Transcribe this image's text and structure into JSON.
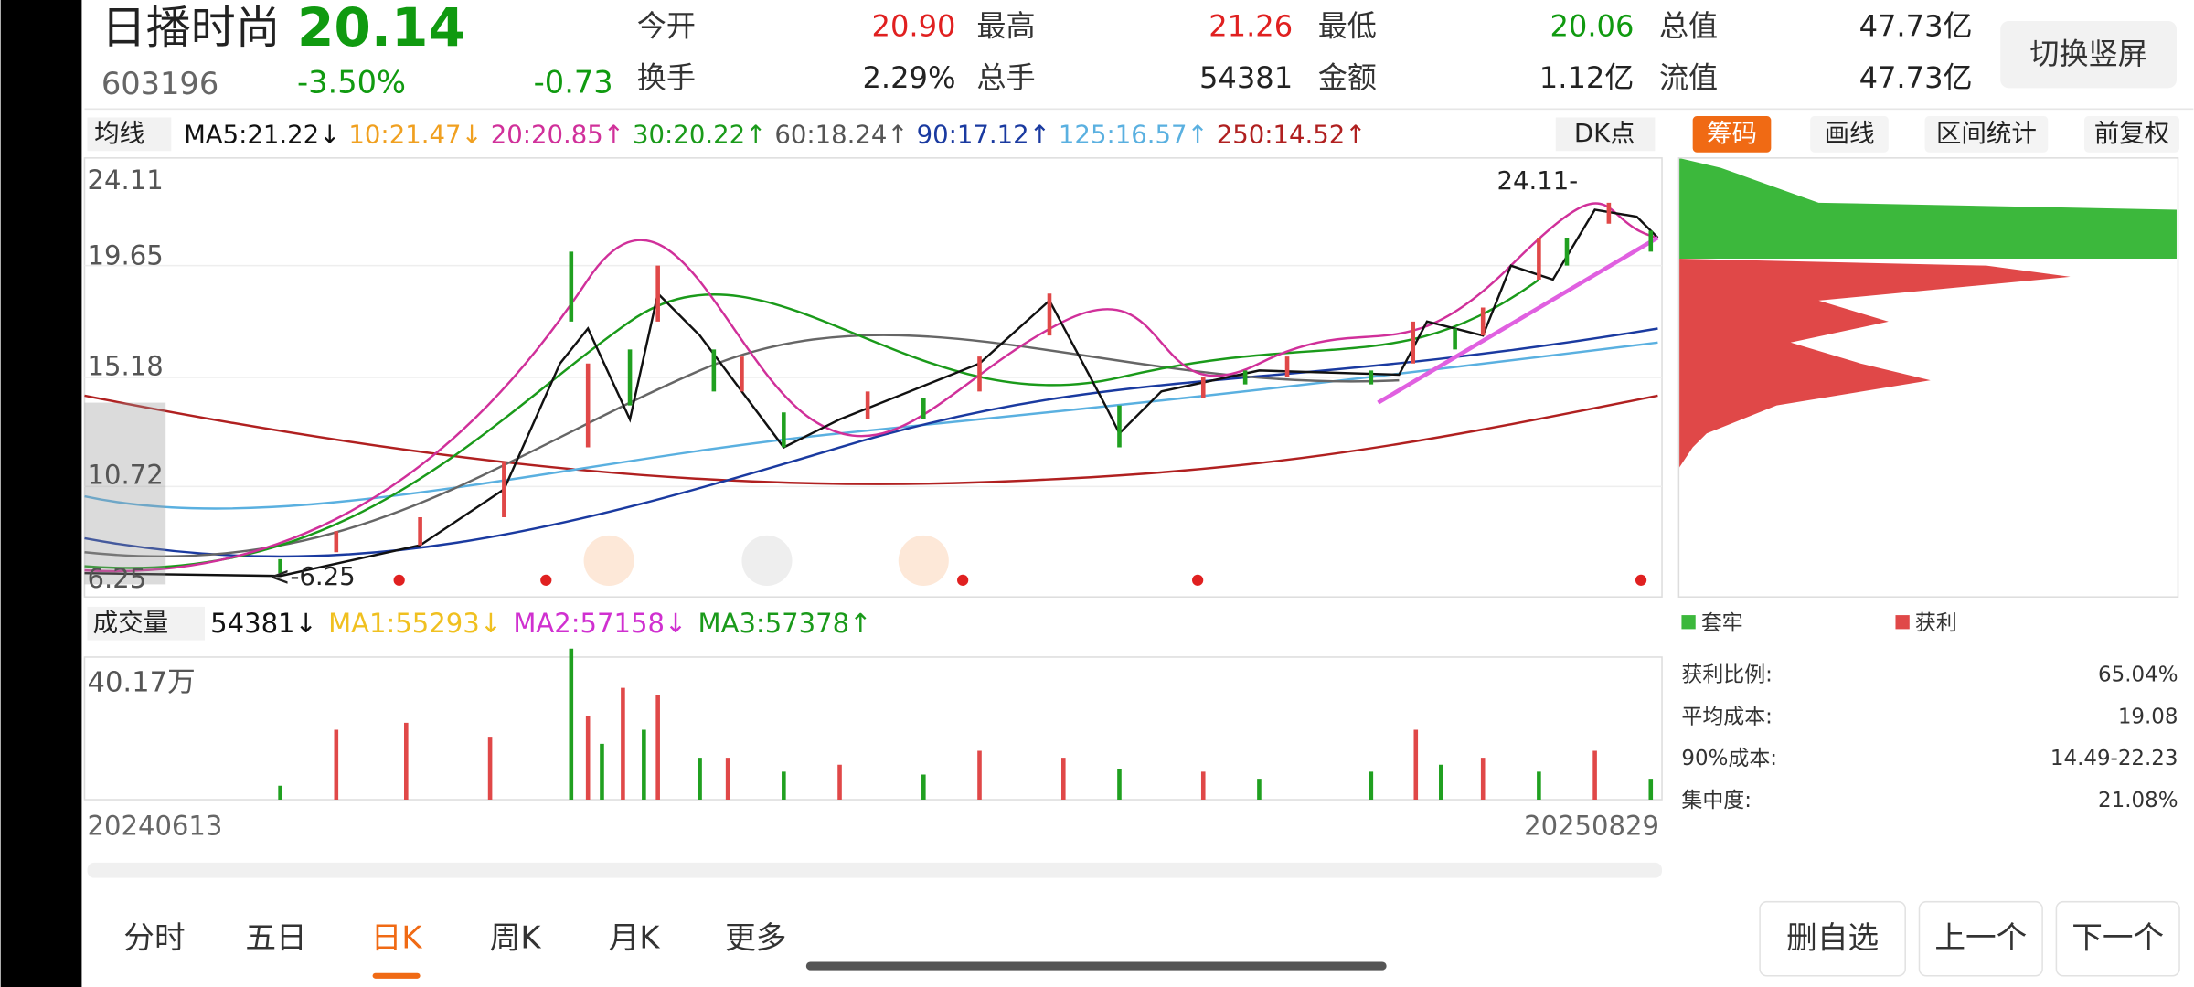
{
  "header": {
    "name": "日播时尚",
    "price": "20.14",
    "code": "603196",
    "change_pct": "-3.50%",
    "change": "-0.73",
    "quotes": [
      {
        "label": "今开",
        "value": "20.90",
        "color": "#e02020"
      },
      {
        "label": "最高",
        "value": "21.26",
        "color": "#e02020"
      },
      {
        "label": "最低",
        "value": "20.06",
        "color": "#109a10"
      },
      {
        "label": "总值",
        "value": "47.73亿",
        "color": "#222222"
      },
      {
        "label": "换手",
        "value": "2.29%",
        "color": "#222222"
      },
      {
        "label": "总手",
        "value": "54381",
        "color": "#222222"
      },
      {
        "label": "金额",
        "value": "1.12亿",
        "color": "#222222"
      },
      {
        "label": "流值",
        "value": "47.73亿",
        "color": "#222222"
      }
    ],
    "button": "切换竖屏"
  },
  "toolbar": {
    "ma_menu": "均线",
    "ma": [
      {
        "text": "MA5:21.22↓",
        "color": "#111111"
      },
      {
        "text": "10:21.47↓",
        "color": "#f0a020"
      },
      {
        "text": "20:20.85↑",
        "color": "#d0309a"
      },
      {
        "text": "30:20.22↑",
        "color": "#1a9a1a"
      },
      {
        "text": "60:18.24↑",
        "color": "#555555"
      },
      {
        "text": "90:17.12↑",
        "color": "#1a3aa0"
      },
      {
        "text": "125:16.57↑",
        "color": "#5ab0e0"
      },
      {
        "text": "250:14.52↑",
        "color": "#b02020"
      }
    ],
    "dk": "DK点",
    "tabs": [
      "筹码",
      "画线",
      "区间统计",
      "前复权"
    ],
    "active_tab": 0
  },
  "price_axis": [
    "24.11",
    "19.65",
    "15.18",
    "10.72",
    "6.25"
  ],
  "annotations": [
    "24.11-",
    "<-6.25"
  ],
  "volume": {
    "menu": "成交量",
    "items": [
      {
        "text": "54381↓",
        "color": "#111111"
      },
      {
        "text": "MA1:55293↓",
        "color": "#f0c020"
      },
      {
        "text": "MA2:57158↓",
        "color": "#d030d0"
      },
      {
        "text": "MA3:57378↑",
        "color": "#1a9a1a"
      }
    ],
    "axis_label": "40.17万"
  },
  "dates": [
    "20240613",
    "20250829"
  ],
  "chips": {
    "legend": [
      {
        "text": "套牢",
        "color": "#3cb83c"
      },
      {
        "text": "获利",
        "color": "#e04848"
      }
    ],
    "stats": [
      {
        "label": "获利比例:",
        "value": "65.04%"
      },
      {
        "label": "平均成本:",
        "value": "19.08"
      },
      {
        "label": "90%成本:",
        "value": "14.49-22.23"
      },
      {
        "label": "集中度:",
        "value": "21.08%"
      }
    ]
  },
  "nav": {
    "tabs": [
      "分时",
      "五日",
      "日K",
      "周K",
      "月K",
      "更多"
    ],
    "active": 2,
    "buttons": [
      "删自选",
      "上一个",
      "下一个"
    ]
  }
}
